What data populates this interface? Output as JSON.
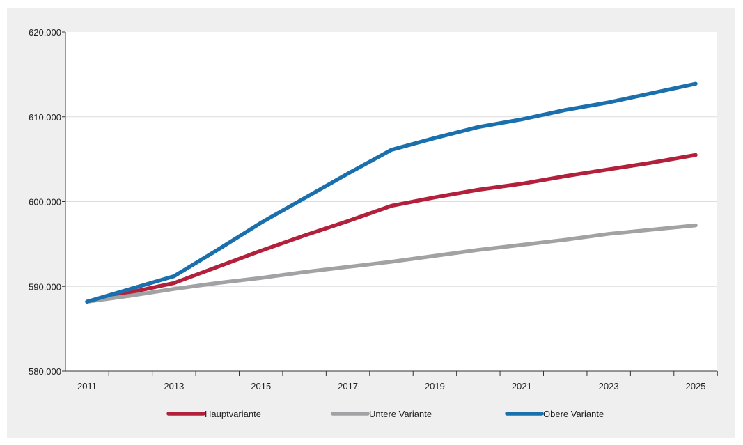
{
  "chart_data": {
    "type": "line",
    "title": "",
    "xlabel": "",
    "ylabel": "",
    "x": [
      2011,
      2012,
      2013,
      2014,
      2015,
      2016,
      2017,
      2018,
      2019,
      2020,
      2021,
      2022,
      2023,
      2024,
      2025
    ],
    "x_tick_labels": [
      "2011",
      "2013",
      "2015",
      "2017",
      "2019",
      "2021",
      "2023",
      "2025"
    ],
    "y_tick_labels": [
      "580.000",
      "590.000",
      "600.000",
      "610.000",
      "620.000"
    ],
    "ylim": [
      580000,
      620000
    ],
    "grid": "horizontal",
    "legend_position": "bottom",
    "series": [
      {
        "name": "Hauptvariante",
        "color": "#b3203c",
        "values": [
          588200,
          589300,
          590400,
          592300,
          594200,
          596000,
          597700,
          599500,
          600500,
          601400,
          602100,
          603000,
          603800,
          604600,
          605500
        ]
      },
      {
        "name": "Untere Variante",
        "color": "#a2a2a4",
        "values": [
          588200,
          588900,
          589700,
          590400,
          591000,
          591700,
          592300,
          592900,
          593600,
          594300,
          594900,
          595500,
          596200,
          596700,
          597200
        ]
      },
      {
        "name": "Obere Variante",
        "color": "#1a6fad",
        "values": [
          588200,
          589700,
          591200,
          594300,
          597500,
          600400,
          603300,
          606100,
          607500,
          608800,
          609700,
          610800,
          611700,
          612800,
          613900
        ]
      }
    ]
  }
}
